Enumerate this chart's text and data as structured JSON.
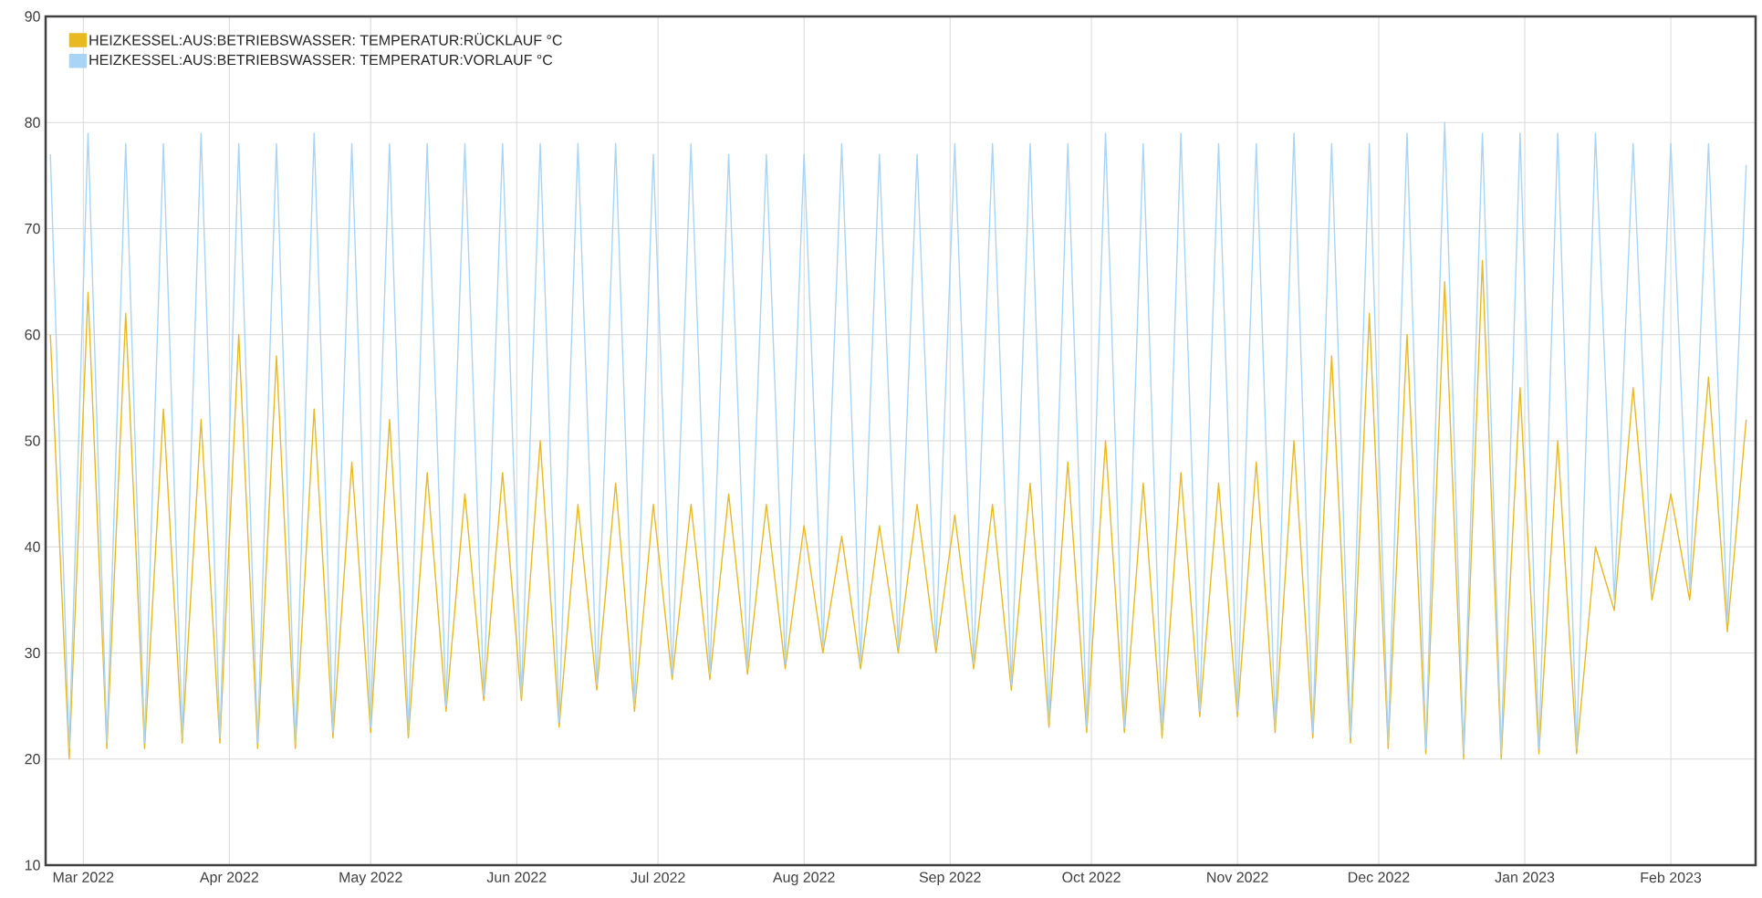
{
  "chart_data": {
    "type": "line",
    "x": [
      "2022-02-22",
      "2022-02-26",
      "2022-03-02",
      "2022-03-06",
      "2022-03-10",
      "2022-03-14",
      "2022-03-18",
      "2022-03-22",
      "2022-03-26",
      "2022-03-30",
      "2022-04-03",
      "2022-04-07",
      "2022-04-11",
      "2022-04-15",
      "2022-04-19",
      "2022-04-23",
      "2022-04-27",
      "2022-05-01",
      "2022-05-05",
      "2022-05-09",
      "2022-05-13",
      "2022-05-17",
      "2022-05-21",
      "2022-05-25",
      "2022-05-29",
      "2022-06-02",
      "2022-06-06",
      "2022-06-10",
      "2022-06-14",
      "2022-06-18",
      "2022-06-22",
      "2022-06-26",
      "2022-06-30",
      "2022-07-04",
      "2022-07-08",
      "2022-07-12",
      "2022-07-16",
      "2022-07-20",
      "2022-07-24",
      "2022-07-28",
      "2022-08-01",
      "2022-08-05",
      "2022-08-09",
      "2022-08-13",
      "2022-08-17",
      "2022-08-21",
      "2022-08-25",
      "2022-08-29",
      "2022-09-02",
      "2022-09-06",
      "2022-09-10",
      "2022-09-14",
      "2022-09-18",
      "2022-09-22",
      "2022-09-26",
      "2022-09-30",
      "2022-10-04",
      "2022-10-08",
      "2022-10-12",
      "2022-10-16",
      "2022-10-20",
      "2022-10-24",
      "2022-10-28",
      "2022-11-01",
      "2022-11-05",
      "2022-11-09",
      "2022-11-13",
      "2022-11-17",
      "2022-11-21",
      "2022-11-25",
      "2022-11-29",
      "2022-12-03",
      "2022-12-07",
      "2022-12-11",
      "2022-12-15",
      "2022-12-19",
      "2022-12-23",
      "2022-12-27",
      "2022-12-31",
      "2023-01-04",
      "2023-01-08",
      "2023-01-12",
      "2023-01-16",
      "2023-01-20",
      "2023-01-24",
      "2023-01-28",
      "2023-02-01",
      "2023-02-05",
      "2023-02-09",
      "2023-02-13",
      "2023-02-17"
    ],
    "series": [
      {
        "name": "HEIZKESSEL:AUS:BETRIEBSWASSER: TEMPERATUR:RÜCKLAUF °C",
        "color": "#e8b923",
        "values": [
          60,
          20,
          64,
          21,
          62,
          21,
          53,
          21.5,
          52,
          21.5,
          60,
          21,
          58,
          21,
          53,
          22,
          48,
          22.5,
          52,
          22,
          47,
          24.5,
          45,
          25.5,
          47,
          25.5,
          50,
          23,
          44,
          26.5,
          46,
          24.5,
          44,
          27.5,
          44,
          27.5,
          45,
          28,
          44,
          28.5,
          42,
          30,
          41,
          28.5,
          42,
          30,
          44,
          30,
          43,
          28.5,
          44,
          26.5,
          46,
          23,
          48,
          22.5,
          50,
          22.5,
          46,
          22,
          47,
          24,
          46,
          24,
          48,
          22.5,
          50,
          22,
          58,
          21.5,
          62,
          21,
          60,
          20.5,
          65,
          20,
          67,
          20,
          55,
          20.5,
          50,
          20.5,
          40,
          34,
          55,
          35,
          45,
          35,
          56,
          32,
          52
        ]
      },
      {
        "name": "HEIZKESSEL:AUS:BETRIEBSWASSER: TEMPERATUR:VORLAUF °C",
        "color": "#aad4f5",
        "values": [
          77,
          21,
          79,
          21.5,
          78,
          21.5,
          78,
          22,
          79,
          22,
          78,
          21.5,
          78,
          21.5,
          79,
          22.5,
          78,
          23,
          78,
          22.5,
          78,
          25,
          78,
          26,
          78,
          26,
          78,
          23.5,
          78,
          27,
          78,
          25,
          77,
          28,
          78,
          28,
          77,
          28.5,
          77,
          29,
          77,
          30.5,
          78,
          29,
          77,
          30.5,
          77,
          30.5,
          78,
          29,
          78,
          27,
          78,
          23.5,
          78,
          23,
          79,
          23,
          78,
          22.5,
          79,
          24.5,
          78,
          24.5,
          78,
          23,
          79,
          22.5,
          78,
          22,
          78,
          21.5,
          79,
          21,
          80,
          20.5,
          79,
          20.5,
          79,
          21,
          79,
          21,
          79,
          35,
          78,
          36,
          78,
          36,
          78,
          33,
          76
        ]
      }
    ],
    "xlim": [
      "2022-02-21",
      "2023-02-19"
    ],
    "xticks": [
      {
        "value": "2022-03-01",
        "label": "Mar 2022"
      },
      {
        "value": "2022-04-01",
        "label": "Apr 2022"
      },
      {
        "value": "2022-05-01",
        "label": "May 2022"
      },
      {
        "value": "2022-06-01",
        "label": "Jun 2022"
      },
      {
        "value": "2022-07-01",
        "label": "Jul 2022"
      },
      {
        "value": "2022-08-01",
        "label": "Aug 2022"
      },
      {
        "value": "2022-09-01",
        "label": "Sep 2022"
      },
      {
        "value": "2022-10-01",
        "label": "Oct 2022"
      },
      {
        "value": "2022-11-01",
        "label": "Nov 2022"
      },
      {
        "value": "2022-12-01",
        "label": "Dec 2022"
      },
      {
        "value": "2023-01-01",
        "label": "Jan 2023"
      },
      {
        "value": "2023-02-01",
        "label": "Feb 2023"
      }
    ],
    "ylim": [
      10,
      90
    ],
    "yticks": [
      10,
      20,
      30,
      40,
      50,
      60,
      70,
      80,
      90
    ],
    "grid": true,
    "legend": "top left"
  }
}
